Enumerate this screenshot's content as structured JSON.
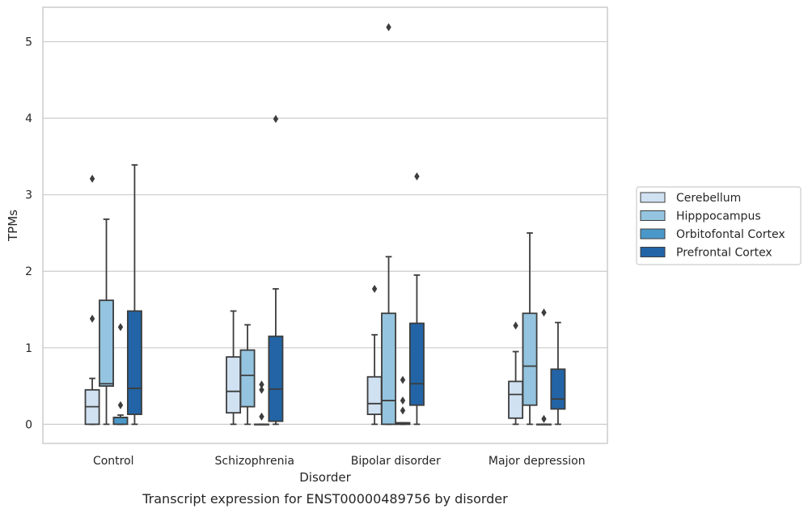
{
  "chart_data": {
    "type": "box",
    "caption": "Transcript expression for ENST00000489756 by disorder",
    "xlabel": "Disorder",
    "ylabel": "TPMs",
    "ylim": [
      -0.25,
      5.45
    ],
    "yticks": [
      "0",
      "1",
      "2",
      "3",
      "4",
      "5"
    ],
    "grid": true,
    "legend_position": "right",
    "categories": [
      "Control",
      "Schizophrenia",
      "Bipolar disorder",
      "Major depression"
    ],
    "series": [
      {
        "name": "Cerebellum",
        "color": "#d0e1f2",
        "boxes": [
          {
            "whisker_low": 0.0,
            "q1": 0.0,
            "median": 0.23,
            "q3": 0.45,
            "whisker_high": 0.6,
            "outliers": [
              1.38,
              3.21
            ]
          },
          {
            "whisker_low": 0.0,
            "q1": 0.15,
            "median": 0.43,
            "q3": 0.88,
            "whisker_high": 1.48,
            "outliers": []
          },
          {
            "whisker_low": 0.0,
            "q1": 0.13,
            "median": 0.27,
            "q3": 0.62,
            "whisker_high": 1.17,
            "outliers": [
              1.77
            ]
          },
          {
            "whisker_low": 0.0,
            "q1": 0.08,
            "median": 0.39,
            "q3": 0.56,
            "whisker_high": 0.95,
            "outliers": [
              1.29
            ]
          }
        ]
      },
      {
        "name": "Hipppocampus",
        "color": "#94c4df",
        "boxes": [
          {
            "whisker_low": 0.0,
            "q1": 0.5,
            "median": 0.53,
            "q3": 1.62,
            "whisker_high": 2.68,
            "outliers": []
          },
          {
            "whisker_low": 0.0,
            "q1": 0.23,
            "median": 0.64,
            "q3": 0.97,
            "whisker_high": 1.3,
            "outliers": []
          },
          {
            "whisker_low": 0.0,
            "q1": 0.0,
            "median": 0.31,
            "q3": 1.45,
            "whisker_high": 2.19,
            "outliers": [
              5.19
            ]
          },
          {
            "whisker_low": 0.0,
            "q1": 0.25,
            "median": 0.76,
            "q3": 1.45,
            "whisker_high": 2.5,
            "outliers": []
          }
        ]
      },
      {
        "name": "Orbitofontal Cortex",
        "color": "#4a98c9",
        "boxes": [
          {
            "whisker_low": 0.0,
            "q1": 0.0,
            "median": 0.09,
            "q3": 0.09,
            "whisker_high": 0.12,
            "outliers": [
              0.25,
              1.27
            ]
          },
          {
            "whisker_low": 0.0,
            "q1": 0.0,
            "median": 0.0,
            "q3": 0.0,
            "whisker_high": 0.0,
            "outliers": [
              0.1,
              0.45,
              0.52
            ]
          },
          {
            "whisker_low": 0.0,
            "q1": 0.0,
            "median": 0.01,
            "q3": 0.02,
            "whisker_high": 0.02,
            "outliers": [
              0.18,
              0.31,
              0.58
            ]
          },
          {
            "whisker_low": 0.0,
            "q1": 0.0,
            "median": 0.0,
            "q3": 0.0,
            "whisker_high": 0.0,
            "outliers": [
              0.07,
              1.46
            ]
          }
        ]
      },
      {
        "name": "Prefrontal Cortex",
        "color": "#2264a6",
        "boxes": [
          {
            "whisker_low": 0.0,
            "q1": 0.13,
            "median": 0.47,
            "q3": 1.48,
            "whisker_high": 3.39,
            "outliers": []
          },
          {
            "whisker_low": 0.0,
            "q1": 0.04,
            "median": 0.46,
            "q3": 1.15,
            "whisker_high": 1.77,
            "outliers": [
              3.99
            ]
          },
          {
            "whisker_low": 0.0,
            "q1": 0.25,
            "median": 0.53,
            "q3": 1.32,
            "whisker_high": 1.95,
            "outliers": [
              3.24
            ]
          },
          {
            "whisker_low": 0.0,
            "q1": 0.2,
            "median": 0.33,
            "q3": 0.72,
            "whisker_high": 1.33,
            "outliers": []
          }
        ]
      }
    ]
  }
}
